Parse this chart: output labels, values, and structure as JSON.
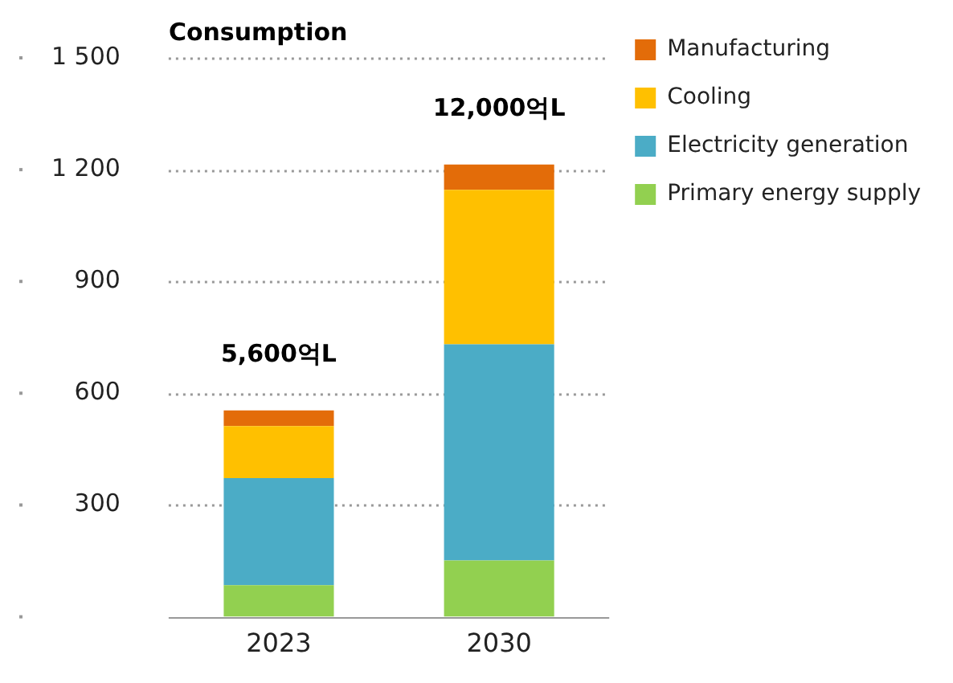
{
  "chart_data": {
    "type": "bar",
    "title": "Consumption",
    "categories": [
      "2023",
      "2030"
    ],
    "stacked": true,
    "series": [
      {
        "name": "Primary energy supply",
        "color": "#92d050",
        "values": [
          85,
          151
        ]
      },
      {
        "name": "Electricity generation",
        "color": "#4bacc6",
        "values": [
          287,
          580
        ]
      },
      {
        "name": "Cooling",
        "color": "#ffc000",
        "values": [
          140,
          415
        ]
      },
      {
        "name": "Manufacturing",
        "color": "#e36c09",
        "values": [
          42,
          68
        ]
      }
    ],
    "ylim": [
      0,
      1500
    ],
    "yticks": [
      {
        "value": 0,
        "label": null
      },
      300,
      600,
      900,
      {
        "value": 1200,
        "label": "1 200"
      },
      {
        "value": 1500,
        "label": "1 500"
      }
    ],
    "grid": "y",
    "legend": "right",
    "annotations": [
      "5,600억L",
      "12,000억L"
    ]
  }
}
